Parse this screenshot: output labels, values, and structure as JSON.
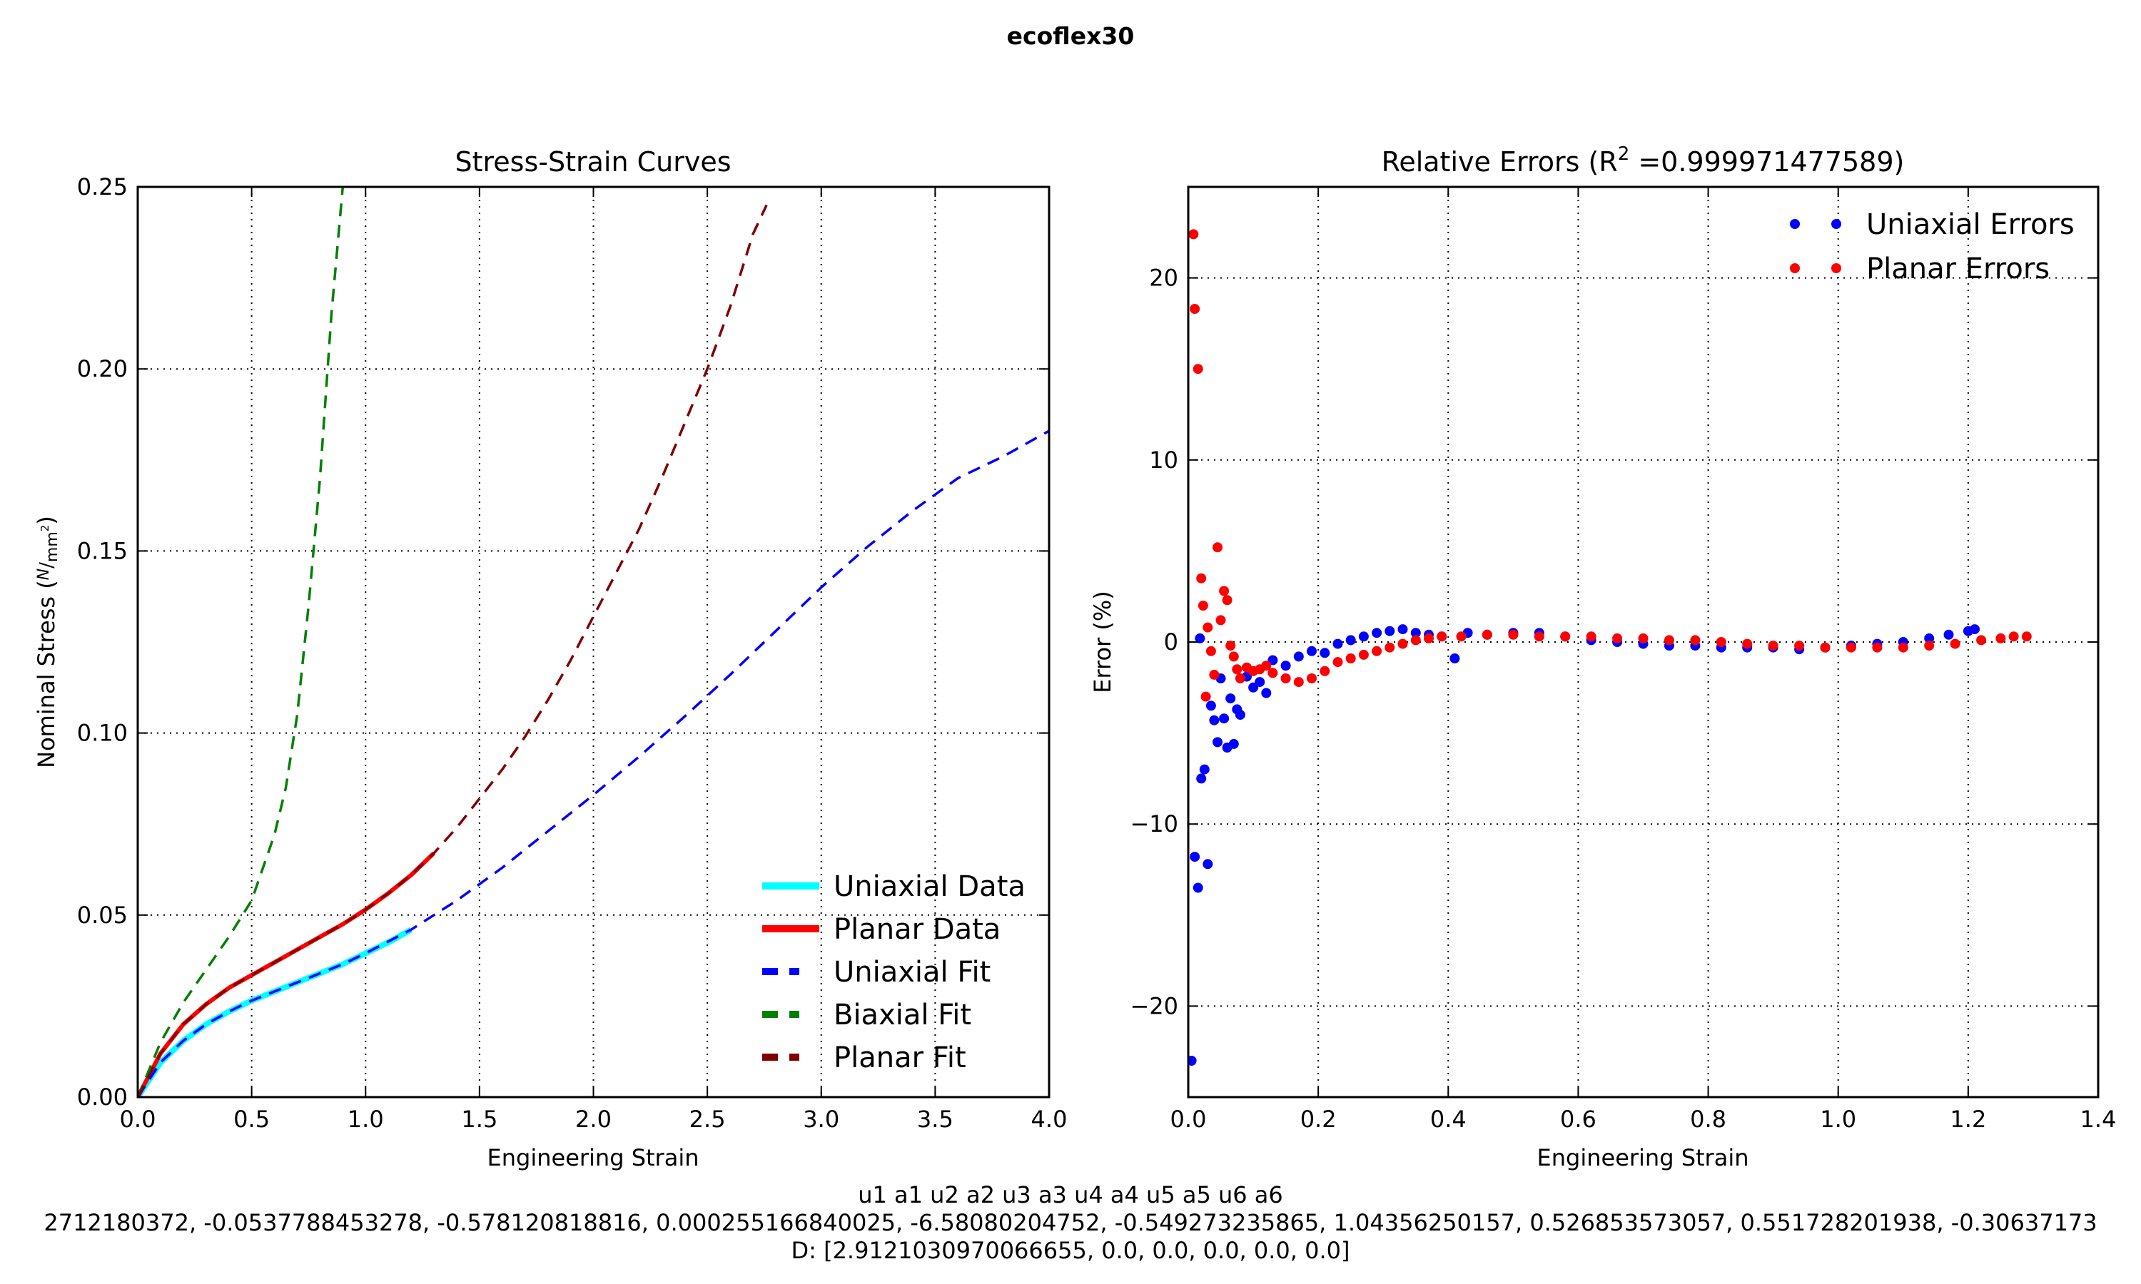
{
  "suptitle": "ecoflex30",
  "chart_data": [
    {
      "type": "line",
      "title": "Stress-Strain Curves",
      "xlabel": "Engineering Strain",
      "ylabel_main": "Nominal Stress (",
      "ylabel_unit_num": "N",
      "ylabel_unit_den": "mm",
      "ylabel_unit_pow": "2",
      "ylabel_close": ")",
      "xlim": [
        0.0,
        4.0
      ],
      "ylim": [
        0.0,
        0.25
      ],
      "xticks": [
        "0.0",
        "0.5",
        "1.0",
        "1.5",
        "2.0",
        "2.5",
        "3.0",
        "3.5",
        "4.0"
      ],
      "yticks": [
        "0.00",
        "0.05",
        "0.10",
        "0.15",
        "0.20",
        "0.25"
      ],
      "grid": true,
      "legend_position": "lower-right",
      "series": [
        {
          "name": "Uniaxial Data",
          "color": "#00ffff",
          "style": "solid",
          "x": [
            0,
            0.1,
            0.2,
            0.3,
            0.4,
            0.5,
            0.6,
            0.7,
            0.8,
            0.9,
            1.0,
            1.1,
            1.2
          ],
          "y": [
            0,
            0.0095,
            0.0155,
            0.02,
            0.0235,
            0.0265,
            0.029,
            0.0315,
            0.034,
            0.0365,
            0.0395,
            0.0425,
            0.046
          ]
        },
        {
          "name": "Planar Data",
          "color": "#ff0000",
          "style": "solid",
          "x": [
            0,
            0.1,
            0.2,
            0.3,
            0.4,
            0.5,
            0.6,
            0.7,
            0.8,
            0.9,
            1.0,
            1.1,
            1.2,
            1.3
          ],
          "y": [
            0,
            0.012,
            0.02,
            0.0255,
            0.03,
            0.0335,
            0.037,
            0.0405,
            0.044,
            0.0475,
            0.0515,
            0.056,
            0.061,
            0.067
          ]
        },
        {
          "name": "Uniaxial Fit",
          "color": "#0000ff",
          "style": "dashed",
          "x": [
            0,
            0.1,
            0.2,
            0.3,
            0.4,
            0.5,
            0.6,
            0.7,
            0.8,
            0.9,
            1.0,
            1.2,
            1.4,
            1.6,
            1.8,
            2.0,
            2.2,
            2.4,
            2.6,
            2.8,
            3.0,
            3.2,
            3.4,
            3.6,
            3.8,
            4.0
          ],
          "y": [
            0,
            0.0095,
            0.0155,
            0.02,
            0.0235,
            0.0265,
            0.029,
            0.0315,
            0.034,
            0.0365,
            0.0395,
            0.046,
            0.054,
            0.063,
            0.073,
            0.083,
            0.0935,
            0.1045,
            0.116,
            0.128,
            0.14,
            0.151,
            0.161,
            0.17,
            0.176,
            0.183
          ]
        },
        {
          "name": "Biaxial Fit",
          "color": "#008000",
          "style": "dashed",
          "x": [
            0,
            0.1,
            0.2,
            0.3,
            0.4,
            0.5,
            0.6,
            0.65,
            0.7,
            0.75,
            0.8,
            0.85,
            0.9
          ],
          "y": [
            0,
            0.015,
            0.026,
            0.035,
            0.044,
            0.054,
            0.072,
            0.085,
            0.105,
            0.135,
            0.17,
            0.215,
            0.25
          ]
        },
        {
          "name": "Planar Fit",
          "color": "#800000",
          "style": "dashed",
          "x": [
            0,
            0.1,
            0.2,
            0.3,
            0.4,
            0.5,
            0.6,
            0.7,
            0.8,
            0.9,
            1.0,
            1.1,
            1.2,
            1.3,
            1.4,
            1.5,
            1.6,
            1.7,
            1.8,
            1.9,
            2.0,
            2.1,
            2.2,
            2.3,
            2.4,
            2.5,
            2.6,
            2.7,
            2.76
          ],
          "y": [
            0,
            0.012,
            0.02,
            0.0255,
            0.03,
            0.0335,
            0.037,
            0.0405,
            0.044,
            0.0475,
            0.0515,
            0.056,
            0.061,
            0.067,
            0.074,
            0.082,
            0.09,
            0.099,
            0.109,
            0.12,
            0.132,
            0.144,
            0.156,
            0.17,
            0.185,
            0.2,
            0.217,
            0.237,
            0.245
          ]
        }
      ]
    },
    {
      "type": "scatter",
      "title_main": "Relative Errors (R",
      "title_sup": "2",
      "title_rest": " =0.999971477589)",
      "xlabel": "Engineering Strain",
      "ylabel": "Error (%)",
      "xlim": [
        0.0,
        1.4
      ],
      "ylim": [
        -25,
        25
      ],
      "xticks": [
        "0.0",
        "0.2",
        "0.4",
        "0.6",
        "0.8",
        "1.0",
        "1.2",
        "1.4"
      ],
      "yticks": [
        "−20",
        "−10",
        "0",
        "10",
        "20"
      ],
      "grid": true,
      "legend_position": "upper-right",
      "series": [
        {
          "name": "Uniaxial Errors",
          "color": "#0000ff",
          "points": [
            [
              0.005,
              -23.0
            ],
            [
              0.01,
              -11.8
            ],
            [
              0.015,
              -13.5
            ],
            [
              0.018,
              0.2
            ],
            [
              0.02,
              -7.5
            ],
            [
              0.025,
              -7.0
            ],
            [
              0.03,
              -12.2
            ],
            [
              0.035,
              -3.5
            ],
            [
              0.04,
              -4.3
            ],
            [
              0.045,
              -5.5
            ],
            [
              0.05,
              -2.0
            ],
            [
              0.055,
              -4.2
            ],
            [
              0.06,
              -5.8
            ],
            [
              0.065,
              -3.1
            ],
            [
              0.07,
              -5.6
            ],
            [
              0.075,
              -3.7
            ],
            [
              0.08,
              -4.0
            ],
            [
              0.09,
              -1.9
            ],
            [
              0.1,
              -2.5
            ],
            [
              0.11,
              -2.2
            ],
            [
              0.12,
              -2.8
            ],
            [
              0.13,
              -1.0
            ],
            [
              0.15,
              -1.3
            ],
            [
              0.17,
              -0.8
            ],
            [
              0.19,
              -0.5
            ],
            [
              0.21,
              -0.6
            ],
            [
              0.23,
              -0.1
            ],
            [
              0.25,
              0.1
            ],
            [
              0.27,
              0.3
            ],
            [
              0.29,
              0.5
            ],
            [
              0.31,
              0.6
            ],
            [
              0.33,
              0.7
            ],
            [
              0.35,
              0.5
            ],
            [
              0.37,
              0.4
            ],
            [
              0.39,
              0.3
            ],
            [
              0.41,
              -0.9
            ],
            [
              0.43,
              0.5
            ],
            [
              0.46,
              0.4
            ],
            [
              0.5,
              0.5
            ],
            [
              0.54,
              0.5
            ],
            [
              0.58,
              0.3
            ],
            [
              0.62,
              0.1
            ],
            [
              0.66,
              0.0
            ],
            [
              0.7,
              -0.1
            ],
            [
              0.74,
              -0.2
            ],
            [
              0.78,
              -0.2
            ],
            [
              0.82,
              -0.3
            ],
            [
              0.86,
              -0.3
            ],
            [
              0.9,
              -0.3
            ],
            [
              0.94,
              -0.4
            ],
            [
              0.98,
              -0.3
            ],
            [
              1.02,
              -0.2
            ],
            [
              1.06,
              -0.1
            ],
            [
              1.1,
              0.0
            ],
            [
              1.14,
              0.2
            ],
            [
              1.17,
              0.4
            ],
            [
              1.2,
              0.6
            ],
            [
              1.21,
              0.7
            ]
          ]
        },
        {
          "name": "Planar Errors",
          "color": "#ff0000",
          "points": [
            [
              0.008,
              22.4
            ],
            [
              0.01,
              18.3
            ],
            [
              0.015,
              15.0
            ],
            [
              0.02,
              3.5
            ],
            [
              0.023,
              2.0
            ],
            [
              0.027,
              -3.0
            ],
            [
              0.03,
              0.8
            ],
            [
              0.035,
              -0.5
            ],
            [
              0.04,
              -1.8
            ],
            [
              0.045,
              5.2
            ],
            [
              0.05,
              1.2
            ],
            [
              0.055,
              2.8
            ],
            [
              0.06,
              2.3
            ],
            [
              0.065,
              -0.2
            ],
            [
              0.07,
              -0.8
            ],
            [
              0.075,
              -1.5
            ],
            [
              0.08,
              -2.0
            ],
            [
              0.09,
              -1.4
            ],
            [
              0.1,
              -1.6
            ],
            [
              0.11,
              -1.5
            ],
            [
              0.12,
              -1.3
            ],
            [
              0.13,
              -1.7
            ],
            [
              0.15,
              -2.0
            ],
            [
              0.17,
              -2.2
            ],
            [
              0.19,
              -2.0
            ],
            [
              0.21,
              -1.6
            ],
            [
              0.23,
              -1.1
            ],
            [
              0.25,
              -0.9
            ],
            [
              0.27,
              -0.7
            ],
            [
              0.29,
              -0.5
            ],
            [
              0.31,
              -0.3
            ],
            [
              0.33,
              -0.1
            ],
            [
              0.35,
              0.1
            ],
            [
              0.37,
              0.2
            ],
            [
              0.39,
              0.3
            ],
            [
              0.42,
              0.3
            ],
            [
              0.46,
              0.4
            ],
            [
              0.5,
              0.4
            ],
            [
              0.54,
              0.3
            ],
            [
              0.58,
              0.3
            ],
            [
              0.62,
              0.3
            ],
            [
              0.66,
              0.2
            ],
            [
              0.7,
              0.2
            ],
            [
              0.74,
              0.1
            ],
            [
              0.78,
              0.1
            ],
            [
              0.82,
              0.0
            ],
            [
              0.86,
              -0.1
            ],
            [
              0.9,
              -0.2
            ],
            [
              0.94,
              -0.2
            ],
            [
              0.98,
              -0.3
            ],
            [
              1.02,
              -0.3
            ],
            [
              1.06,
              -0.3
            ],
            [
              1.1,
              -0.3
            ],
            [
              1.14,
              -0.2
            ],
            [
              1.18,
              -0.1
            ],
            [
              1.22,
              0.1
            ],
            [
              1.25,
              0.2
            ],
            [
              1.27,
              0.3
            ],
            [
              1.29,
              0.3
            ]
          ]
        }
      ]
    }
  ],
  "footer": {
    "params_header": "u1 a1 u2 a2 u3 a3 u4 a4 u5 a5 u6 a6",
    "params_values": "2712180372, -0.0537788453278, -0.578120818816, 0.000255166840025, -6.58080204752, -0.549273235865, 1.04356250157, 0.526853573057, 0.551728201938, -0.30637173",
    "d_values": "D: [2.9121030970066655, 0.0, 0.0, 0.0, 0.0, 0.0]"
  }
}
